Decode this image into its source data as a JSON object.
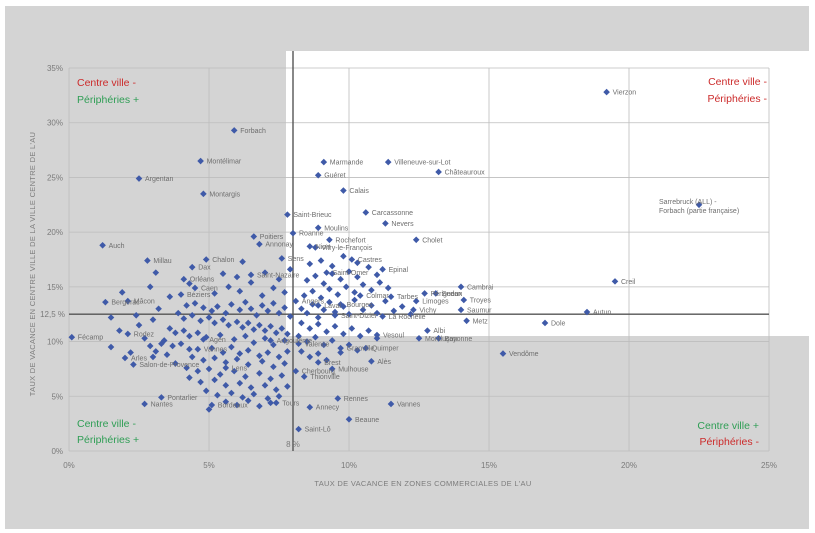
{
  "colors": {
    "background": "#d4d4d4",
    "highlight": "#ffffff",
    "marker": "#3f5aa8",
    "grid": "#bdbdbd",
    "divider": "#555555",
    "quadrant_red": "#cc2b2b",
    "quadrant_green": "#2f9e55"
  },
  "quadrants": {
    "top_left": [
      "Centre ville -",
      "Périphéries +"
    ],
    "top_right": [
      "Centre ville -",
      "Périphéries -"
    ],
    "bottom_left": [
      "Centre ville -",
      "Périphéries +"
    ],
    "bottom_right": [
      "Centre ville +",
      "Périphéries -"
    ]
  },
  "chart_data": {
    "type": "scatter",
    "xlabel": "TAUX DE VACANCE EN ZONES COMMERCIALES DE L'AU",
    "ylabel": "TAUX DE VACANCE EN CENTRE VILLE DE LA VILLE CENTRE DE L'AU",
    "xlim": [
      0,
      25
    ],
    "ylim": [
      0,
      35
    ],
    "x_ticks": [
      "0%",
      "5%",
      "10%",
      "15%",
      "20%",
      "25%"
    ],
    "y_ticks": [
      "0%",
      "5%",
      "10%",
      "15%",
      "20%",
      "25%",
      "30%",
      "35%"
    ],
    "x_divider": 8.0,
    "x_divider_label": "8 %",
    "y_divider": 12.5,
    "y_divider_label": "12,5 %",
    "grid": true,
    "labeled_points": [
      {
        "label": "Vierzon",
        "x": 19.2,
        "y": 32.8
      },
      {
        "label": "Forbach",
        "x": 5.9,
        "y": 29.3
      },
      {
        "label": "Montélimar",
        "x": 4.7,
        "y": 26.5
      },
      {
        "label": "Marmande",
        "x": 9.1,
        "y": 26.4
      },
      {
        "label": "Villeneuve-sur-Lot",
        "x": 11.4,
        "y": 26.4
      },
      {
        "label": "Guéret",
        "x": 8.9,
        "y": 25.2
      },
      {
        "label": "Châteauroux",
        "x": 13.2,
        "y": 25.5
      },
      {
        "label": "Argentan",
        "x": 2.5,
        "y": 24.9
      },
      {
        "label": "Montargis",
        "x": 4.8,
        "y": 23.5
      },
      {
        "label": "Calais",
        "x": 9.8,
        "y": 23.8
      },
      {
        "label": "Sarrebruck (ALL) - Forbach (partie française)",
        "x": 22.5,
        "y": 22.5
      },
      {
        "label": "Saint-Brieuc",
        "x": 7.8,
        "y": 21.6
      },
      {
        "label": "Carcassonne",
        "x": 10.6,
        "y": 21.8
      },
      {
        "label": "Nevers",
        "x": 11.3,
        "y": 20.8
      },
      {
        "label": "Moulins",
        "x": 8.9,
        "y": 20.4
      },
      {
        "label": "Roanne",
        "x": 8.0,
        "y": 19.9
      },
      {
        "label": "Cholet",
        "x": 12.4,
        "y": 19.3
      },
      {
        "label": "Auch",
        "x": 1.2,
        "y": 18.8
      },
      {
        "label": "Poitiers",
        "x": 6.6,
        "y": 19.6
      },
      {
        "label": "Niort",
        "x": 8.6,
        "y": 18.7
      },
      {
        "label": "Annonay",
        "x": 6.8,
        "y": 18.9
      },
      {
        "label": "Rochefort",
        "x": 9.3,
        "y": 19.3
      },
      {
        "label": "Vitry-le-François",
        "x": 8.8,
        "y": 18.6
      },
      {
        "label": "Millau",
        "x": 2.8,
        "y": 17.4
      },
      {
        "label": "Dax",
        "x": 4.4,
        "y": 16.8
      },
      {
        "label": "Chalon",
        "x": 4.9,
        "y": 17.5
      },
      {
        "label": "Sens",
        "x": 7.6,
        "y": 17.6
      },
      {
        "label": "Castres",
        "x": 10.1,
        "y": 17.5
      },
      {
        "label": "Epinal",
        "x": 11.2,
        "y": 16.6
      },
      {
        "label": "Saint-Nazaire",
        "x": 6.5,
        "y": 16.1
      },
      {
        "label": "Saint-Omer",
        "x": 9.2,
        "y": 16.3
      },
      {
        "label": "Creil",
        "x": 19.5,
        "y": 15.5
      },
      {
        "label": "Orléans",
        "x": 4.1,
        "y": 15.7
      },
      {
        "label": "Caen",
        "x": 4.5,
        "y": 14.9
      },
      {
        "label": "Colmar",
        "x": 10.4,
        "y": 14.2
      },
      {
        "label": "Cambrai",
        "x": 14.0,
        "y": 15.0
      },
      {
        "label": "Périgueux",
        "x": 12.7,
        "y": 14.4
      },
      {
        "label": "Sedan",
        "x": 13.1,
        "y": 14.4
      },
      {
        "label": "Béziers",
        "x": 4.0,
        "y": 14.3
      },
      {
        "label": "Tarbes",
        "x": 11.5,
        "y": 14.1
      },
      {
        "label": "Limoges",
        "x": 12.4,
        "y": 13.7
      },
      {
        "label": "Troyes",
        "x": 14.1,
        "y": 13.8
      },
      {
        "label": "Laval",
        "x": 8.9,
        "y": 13.3
      },
      {
        "label": "Bourges",
        "x": 9.7,
        "y": 13.4
      },
      {
        "label": "Angers",
        "x": 8.1,
        "y": 13.7
      },
      {
        "label": "Bergerac",
        "x": 1.3,
        "y": 13.6
      },
      {
        "label": "Mâcon",
        "x": 2.1,
        "y": 13.7
      },
      {
        "label": "Autun",
        "x": 18.5,
        "y": 12.7
      },
      {
        "label": "Saumur",
        "x": 14.0,
        "y": 12.9
      },
      {
        "label": "Vichy",
        "x": 12.3,
        "y": 12.9
      },
      {
        "label": "Saint-Dizier",
        "x": 9.5,
        "y": 12.4
      },
      {
        "label": "La Rochelle",
        "x": 11.2,
        "y": 12.3
      },
      {
        "label": "Metz",
        "x": 14.2,
        "y": 11.9
      },
      {
        "label": "Dole",
        "x": 17.0,
        "y": 11.7
      },
      {
        "label": "Albi",
        "x": 12.8,
        "y": 11.0
      },
      {
        "label": "Fécamp",
        "x": 0.1,
        "y": 10.4
      },
      {
        "label": "Rodez",
        "x": 2.1,
        "y": 10.7
      },
      {
        "label": "Agen",
        "x": 4.8,
        "y": 10.2
      },
      {
        "label": "Angoulême",
        "x": 7.2,
        "y": 10.1
      },
      {
        "label": "Valence",
        "x": 8.2,
        "y": 9.8
      },
      {
        "label": "Vesoul",
        "x": 11.0,
        "y": 10.6
      },
      {
        "label": "Montluçon",
        "x": 12.5,
        "y": 10.3
      },
      {
        "label": "Bayonne",
        "x": 13.2,
        "y": 10.3
      },
      {
        "label": "Vannes",
        "x": 4.6,
        "y": 9.3
      },
      {
        "label": "Granville",
        "x": 9.7,
        "y": 9.4
      },
      {
        "label": "Quimper",
        "x": 10.6,
        "y": 9.4
      },
      {
        "label": "Vendôme",
        "x": 15.5,
        "y": 8.9
      },
      {
        "label": "Arles",
        "x": 2.0,
        "y": 8.5
      },
      {
        "label": "Salon-de-Provence",
        "x": 2.3,
        "y": 7.9
      },
      {
        "label": "Lens",
        "x": 5.6,
        "y": 7.6
      },
      {
        "label": "Brest",
        "x": 8.9,
        "y": 8.1
      },
      {
        "label": "Alès",
        "x": 10.8,
        "y": 8.2
      },
      {
        "label": "Cherbourg",
        "x": 8.1,
        "y": 7.3
      },
      {
        "label": "Mulhouse",
        "x": 9.4,
        "y": 7.5
      },
      {
        "label": "Thionville",
        "x": 8.4,
        "y": 6.8
      },
      {
        "label": "Pontarlier",
        "x": 3.3,
        "y": 4.9
      },
      {
        "label": "Rennes",
        "x": 9.6,
        "y": 4.8
      },
      {
        "label": "Nantes",
        "x": 2.7,
        "y": 4.3
      },
      {
        "label": "Bordeaux",
        "x": 5.1,
        "y": 4.2
      },
      {
        "label": "Tours",
        "x": 7.4,
        "y": 4.4
      },
      {
        "label": "Annecy",
        "x": 8.6,
        "y": 4.0
      },
      {
        "label": "Vannes",
        "x": 11.5,
        "y": 4.3
      },
      {
        "label": "Beaune",
        "x": 10.0,
        "y": 2.9
      },
      {
        "label": "Saint-Lô",
        "x": 8.2,
        "y": 2.0
      }
    ],
    "unlabeled_points": [
      [
        4.2,
        13.3
      ],
      [
        4.5,
        13.5
      ],
      [
        4.8,
        13.1
      ],
      [
        5.1,
        12.8
      ],
      [
        5.3,
        13.2
      ],
      [
        5.6,
        12.6
      ],
      [
        5.8,
        13.4
      ],
      [
        6.1,
        12.9
      ],
      [
        6.3,
        13.6
      ],
      [
        6.5,
        13.0
      ],
      [
        6.7,
        12.4
      ],
      [
        6.9,
        13.3
      ],
      [
        7.1,
        12.8
      ],
      [
        7.3,
        13.5
      ],
      [
        7.5,
        12.6
      ],
      [
        7.7,
        13.1
      ],
      [
        7.9,
        12.3
      ],
      [
        3.9,
        12.6
      ],
      [
        4.1,
        12.1
      ],
      [
        4.4,
        12.4
      ],
      [
        4.7,
        11.9
      ],
      [
        5.0,
        12.2
      ],
      [
        5.2,
        11.7
      ],
      [
        5.5,
        12.0
      ],
      [
        5.7,
        11.5
      ],
      [
        6.0,
        11.8
      ],
      [
        6.2,
        11.3
      ],
      [
        6.4,
        11.7
      ],
      [
        6.6,
        11.1
      ],
      [
        6.8,
        11.5
      ],
      [
        7.0,
        11.0
      ],
      [
        7.2,
        11.4
      ],
      [
        7.4,
        10.8
      ],
      [
        7.6,
        11.2
      ],
      [
        7.8,
        10.7
      ],
      [
        3.6,
        11.2
      ],
      [
        3.8,
        10.8
      ],
      [
        4.1,
        11.0
      ],
      [
        4.3,
        10.5
      ],
      [
        4.6,
        10.8
      ],
      [
        4.9,
        10.4
      ],
      [
        5.4,
        10.6
      ],
      [
        5.9,
        10.2
      ],
      [
        6.3,
        10.5
      ],
      [
        6.6,
        9.9
      ],
      [
        7.0,
        10.3
      ],
      [
        7.3,
        9.7
      ],
      [
        7.7,
        10.1
      ],
      [
        3.4,
        10.1
      ],
      [
        3.7,
        9.6
      ],
      [
        4.0,
        9.8
      ],
      [
        4.3,
        9.3
      ],
      [
        5.1,
        9.4
      ],
      [
        5.5,
        9.0
      ],
      [
        5.8,
        9.5
      ],
      [
        6.1,
        8.9
      ],
      [
        6.4,
        9.2
      ],
      [
        6.8,
        8.7
      ],
      [
        7.1,
        9.0
      ],
      [
        7.5,
        8.6
      ],
      [
        7.8,
        9.1
      ],
      [
        2.9,
        9.6
      ],
      [
        3.1,
        9.1
      ],
      [
        3.5,
        8.8
      ],
      [
        4.4,
        8.6
      ],
      [
        4.8,
        8.3
      ],
      [
        5.2,
        8.5
      ],
      [
        5.6,
        8.1
      ],
      [
        6.0,
        8.4
      ],
      [
        6.4,
        7.9
      ],
      [
        6.9,
        8.2
      ],
      [
        7.3,
        7.7
      ],
      [
        7.7,
        8.0
      ],
      [
        3.8,
        8.0
      ],
      [
        4.2,
        7.6
      ],
      [
        4.6,
        7.3
      ],
      [
        5.0,
        7.5
      ],
      [
        5.4,
        7.0
      ],
      [
        5.9,
        7.3
      ],
      [
        6.3,
        6.8
      ],
      [
        6.8,
        7.1
      ],
      [
        7.2,
        6.6
      ],
      [
        7.6,
        6.9
      ],
      [
        4.3,
        6.7
      ],
      [
        4.7,
        6.3
      ],
      [
        5.2,
        6.5
      ],
      [
        5.6,
        6.0
      ],
      [
        6.1,
        6.2
      ],
      [
        6.5,
        5.8
      ],
      [
        7.0,
        6.0
      ],
      [
        7.4,
        5.6
      ],
      [
        7.8,
        5.9
      ],
      [
        4.9,
        5.5
      ],
      [
        5.3,
        5.1
      ],
      [
        5.8,
        5.3
      ],
      [
        6.2,
        4.9
      ],
      [
        6.6,
        5.2
      ],
      [
        7.1,
        4.8
      ],
      [
        7.5,
        5.0
      ],
      [
        5.6,
        4.5
      ],
      [
        6.0,
        4.2
      ],
      [
        6.4,
        4.6
      ],
      [
        6.8,
        4.1
      ],
      [
        7.2,
        4.4
      ],
      [
        5.0,
        3.8
      ],
      [
        8.3,
        13.0
      ],
      [
        8.5,
        12.6
      ],
      [
        8.7,
        13.4
      ],
      [
        8.9,
        12.2
      ],
      [
        9.1,
        12.9
      ],
      [
        9.3,
        13.6
      ],
      [
        9.5,
        12.7
      ],
      [
        9.8,
        13.2
      ],
      [
        10.0,
        12.5
      ],
      [
        10.2,
        13.8
      ],
      [
        10.5,
        12.9
      ],
      [
        10.8,
        13.3
      ],
      [
        11.0,
        12.6
      ],
      [
        11.3,
        13.7
      ],
      [
        11.6,
        12.8
      ],
      [
        11.9,
        13.2
      ],
      [
        12.2,
        12.5
      ],
      [
        8.4,
        14.2
      ],
      [
        8.7,
        14.6
      ],
      [
        9.0,
        14.0
      ],
      [
        9.3,
        14.8
      ],
      [
        9.6,
        14.3
      ],
      [
        9.9,
        15.0
      ],
      [
        10.2,
        14.5
      ],
      [
        10.5,
        15.2
      ],
      [
        10.8,
        14.7
      ],
      [
        11.1,
        15.4
      ],
      [
        11.4,
        14.9
      ],
      [
        8.5,
        15.6
      ],
      [
        8.8,
        16.0
      ],
      [
        9.1,
        15.3
      ],
      [
        9.4,
        16.2
      ],
      [
        9.7,
        15.7
      ],
      [
        10.0,
        16.4
      ],
      [
        10.3,
        15.9
      ],
      [
        10.7,
        16.8
      ],
      [
        11.0,
        16.1
      ],
      [
        8.6,
        17.1
      ],
      [
        9.0,
        17.4
      ],
      [
        9.4,
        16.9
      ],
      [
        9.8,
        17.8
      ],
      [
        10.3,
        17.2
      ],
      [
        8.3,
        11.7
      ],
      [
        8.6,
        11.2
      ],
      [
        8.9,
        11.6
      ],
      [
        9.2,
        10.9
      ],
      [
        9.5,
        11.4
      ],
      [
        9.8,
        10.7
      ],
      [
        10.1,
        11.2
      ],
      [
        10.4,
        10.5
      ],
      [
        10.7,
        11.0
      ],
      [
        11.0,
        10.3
      ],
      [
        8.2,
        10.5
      ],
      [
        8.5,
        10.0
      ],
      [
        8.8,
        10.4
      ],
      [
        9.1,
        9.7
      ],
      [
        9.4,
        10.1
      ],
      [
        9.7,
        9.0
      ],
      [
        10.0,
        9.7
      ],
      [
        10.3,
        9.2
      ],
      [
        8.3,
        9.1
      ],
      [
        8.6,
        8.6
      ],
      [
        8.9,
        8.9
      ],
      [
        9.2,
        8.3
      ],
      [
        1.8,
        11.0
      ],
      [
        2.5,
        11.5
      ],
      [
        3.0,
        12.0
      ],
      [
        2.7,
        10.3
      ],
      [
        3.3,
        9.8
      ],
      [
        1.5,
        9.5
      ],
      [
        2.2,
        9.0
      ],
      [
        3.0,
        8.6
      ],
      [
        2.4,
        12.4
      ],
      [
        3.2,
        13.0
      ],
      [
        3.6,
        14.1
      ],
      [
        4.3,
        15.3
      ],
      [
        5.2,
        14.4
      ],
      [
        5.7,
        15.0
      ],
      [
        6.1,
        14.6
      ],
      [
        6.5,
        15.4
      ],
      [
        6.9,
        14.2
      ],
      [
        7.3,
        14.9
      ],
      [
        7.7,
        14.5
      ],
      [
        5.5,
        16.2
      ],
      [
        6.0,
        15.9
      ],
      [
        7.0,
        16.3
      ],
      [
        7.5,
        15.7
      ],
      [
        7.9,
        16.6
      ],
      [
        6.2,
        17.3
      ],
      [
        3.1,
        16.3
      ],
      [
        2.9,
        15.0
      ],
      [
        1.9,
        14.5
      ],
      [
        1.5,
        12.2
      ]
    ]
  }
}
